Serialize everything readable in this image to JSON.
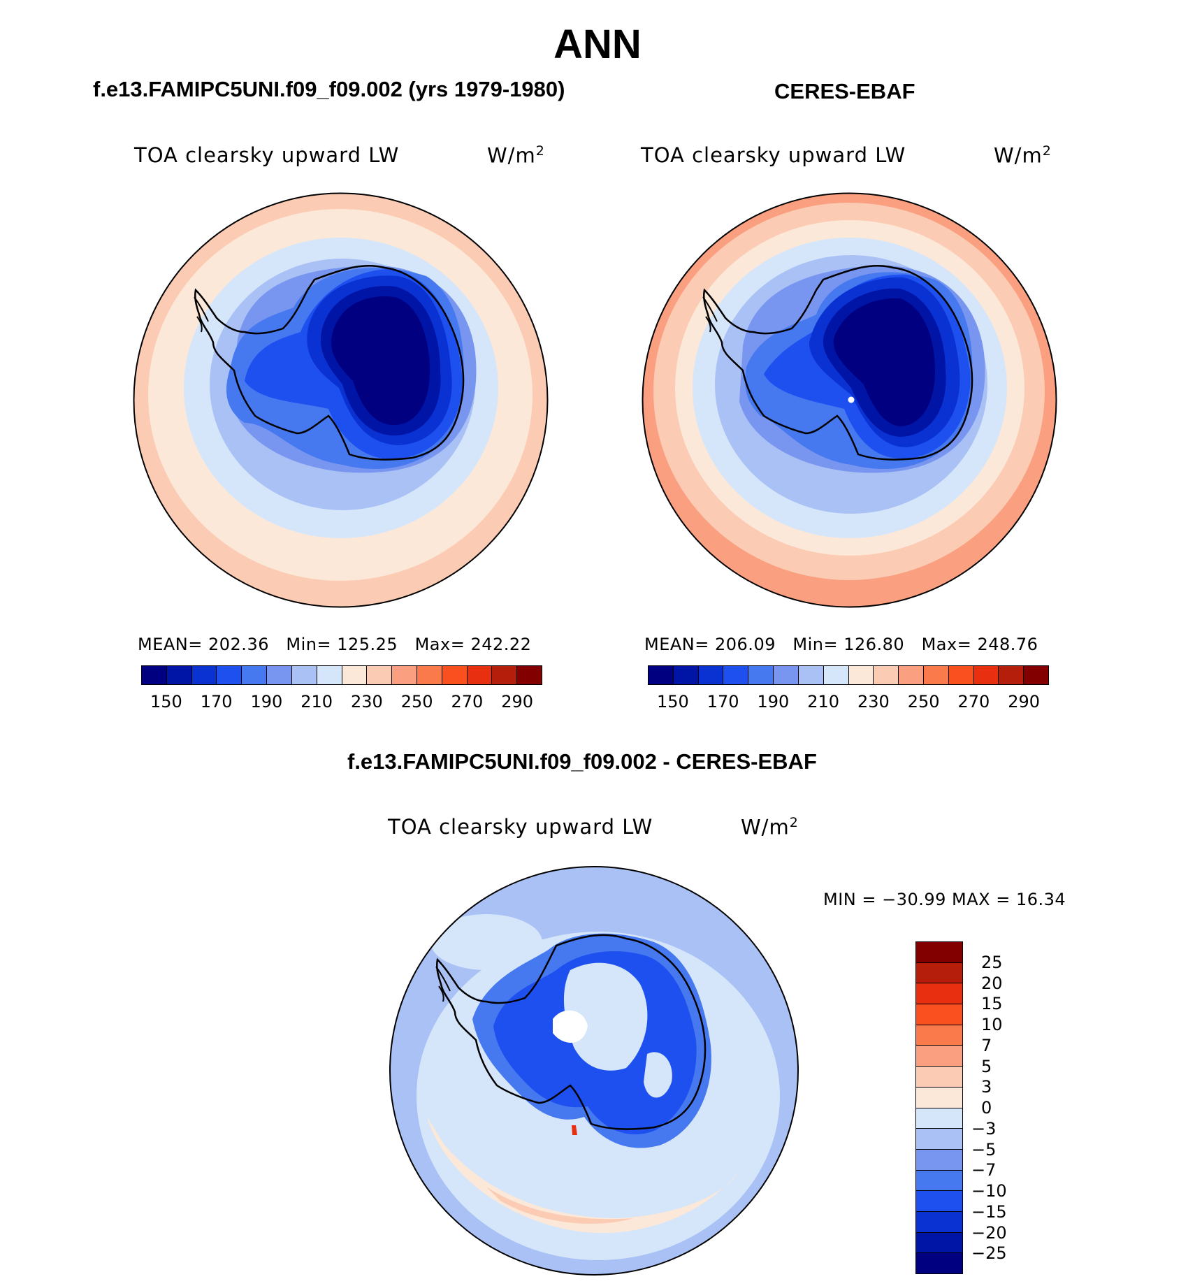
{
  "title": "ANN",
  "colorbar_abs": {
    "colors": [
      "#000080",
      "#0014a6",
      "#0a32d2",
      "#1e50f0",
      "#4678f0",
      "#7896f0",
      "#a9c1f5",
      "#d5e6fa",
      "#fce8d8",
      "#fbcbb4",
      "#fa9f80",
      "#fa7a4b",
      "#fa5020",
      "#e83010",
      "#b41e0a",
      "#820000"
    ],
    "ticks": [
      "150",
      "170",
      "190",
      "210",
      "230",
      "250",
      "270",
      "290"
    ]
  },
  "colorbar_diff": {
    "colors": [
      "#820000",
      "#b41e0a",
      "#e83010",
      "#fa5020",
      "#fa7a4b",
      "#fa9f80",
      "#fbcbb4",
      "#fce8d8",
      "#d5e6fa",
      "#a9c1f5",
      "#7896f0",
      "#4678f0",
      "#1e50f0",
      "#0a32d2",
      "#0014a6",
      "#000080"
    ],
    "ticks": [
      "25",
      "20",
      "15",
      "10",
      "7",
      "5",
      "3",
      "0",
      "−3",
      "−5",
      "−7",
      "−10",
      "−15",
      "−20",
      "−25"
    ]
  },
  "panels": [
    {
      "title": "f.e13.FAMIPC5UNI.f09_f09.002 (yrs 1979-1980)",
      "variable": "TOA clearsky upward LW",
      "units_base": "W/m",
      "units_exp": "2",
      "mean_label": "MEAN=",
      "mean": "202.36",
      "min_label": "Min=",
      "min": "125.25",
      "max_label": "Max=",
      "max": "242.22"
    },
    {
      "title": "CERES-EBAF",
      "variable": "TOA clearsky upward LW",
      "units_base": "W/m",
      "units_exp": "2",
      "mean_label": "MEAN=",
      "mean": "206.09",
      "min_label": "Min=",
      "min": "126.80",
      "max_label": "Max=",
      "max": "248.76"
    }
  ],
  "diff_panel": {
    "title": "f.e13.FAMIPC5UNI.f09_f09.002 - CERES-EBAF",
    "variable": "TOA clearsky upward LW",
    "units_base": "W/m",
    "units_exp": "2",
    "stats": "MIN = −30.99 MAX =   16.34"
  }
}
